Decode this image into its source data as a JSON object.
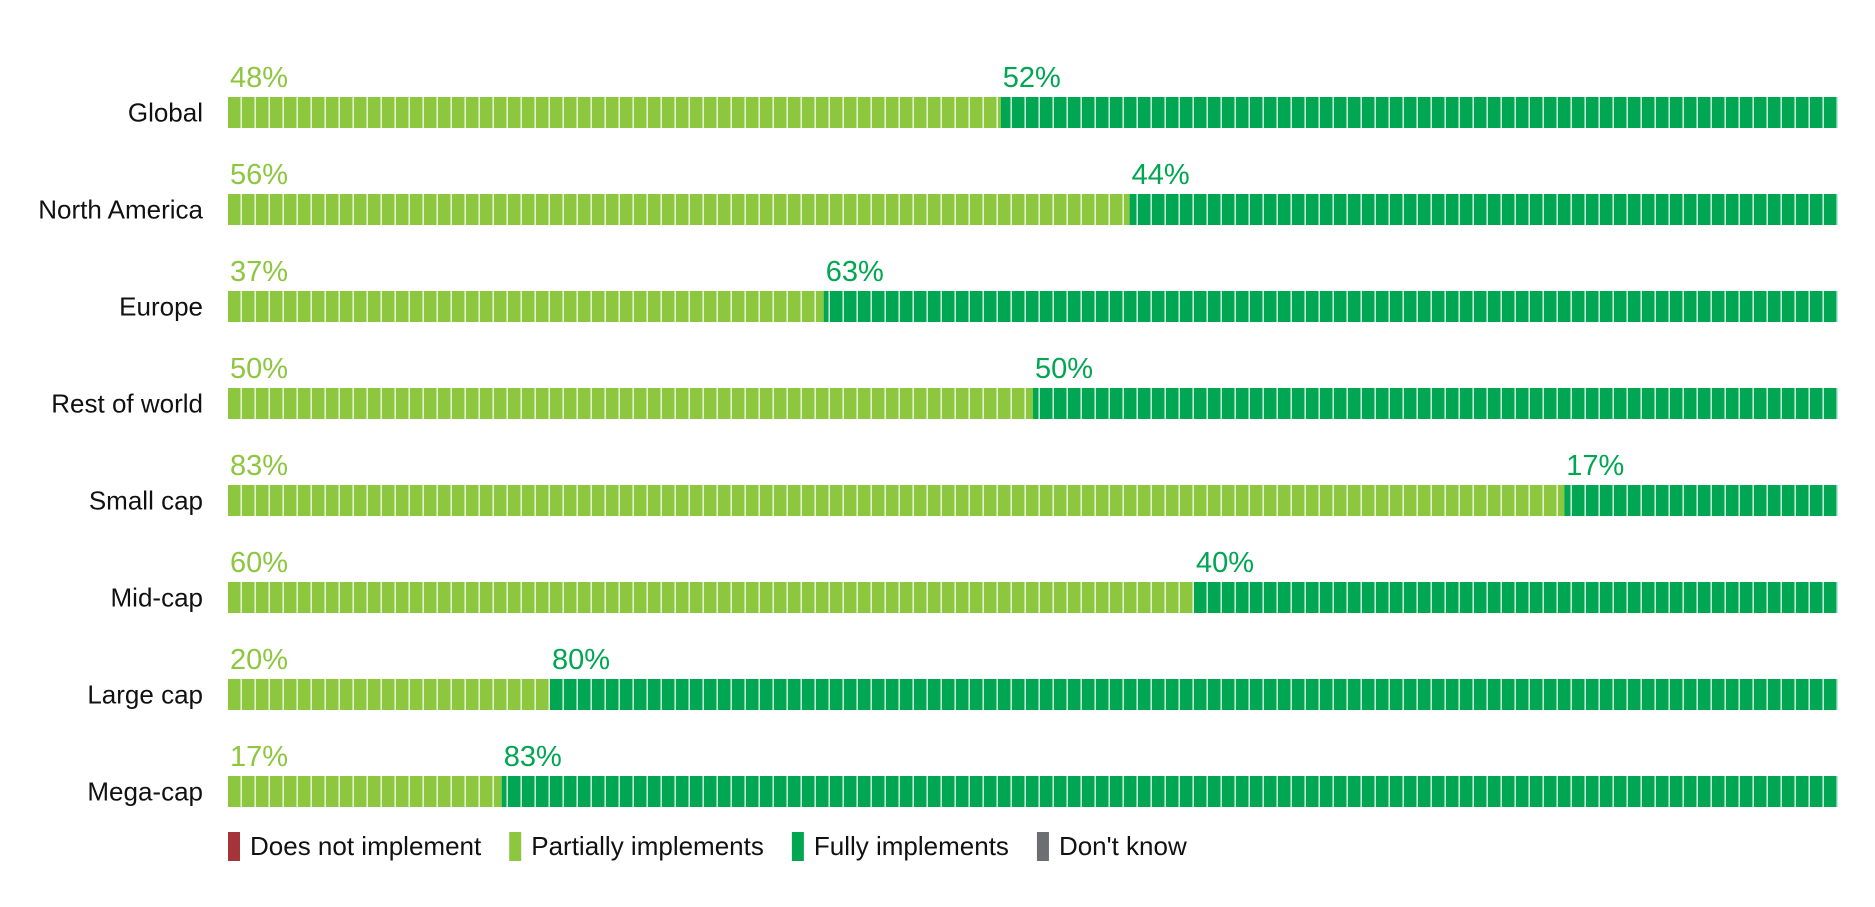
{
  "chart_data": {
    "type": "bar",
    "orientation": "horizontal",
    "stacked": true,
    "categories": [
      "Global",
      "North America",
      "Europe",
      "Rest of world",
      "Small cap",
      "Mid-cap",
      "Large cap",
      "Mega-cap"
    ],
    "series": [
      {
        "name": "Does not implement",
        "color": "#a4343a",
        "values": [
          0,
          0,
          0,
          0,
          0,
          0,
          0,
          0
        ]
      },
      {
        "name": "Partially implements",
        "color": "#8dc63f",
        "values": [
          48,
          56,
          37,
          50,
          83,
          60,
          20,
          17
        ]
      },
      {
        "name": "Fully implements",
        "color": "#00a651",
        "values": [
          52,
          44,
          63,
          50,
          17,
          40,
          80,
          83
        ]
      },
      {
        "name": "Don't know",
        "color": "#6d6e71",
        "values": [
          0,
          0,
          0,
          0,
          0,
          0,
          0,
          0
        ]
      }
    ],
    "value_labels": [
      [
        "48%",
        "52%"
      ],
      [
        "56%",
        "44%"
      ],
      [
        "37%",
        "63%"
      ],
      [
        "50%",
        "50%"
      ],
      [
        "83%",
        "17%"
      ],
      [
        "60%",
        "40%"
      ],
      [
        "20%",
        "80%"
      ],
      [
        "17%",
        "83%"
      ]
    ],
    "xlim": [
      0,
      100
    ],
    "grid": false,
    "legend_position": "bottom-left"
  }
}
